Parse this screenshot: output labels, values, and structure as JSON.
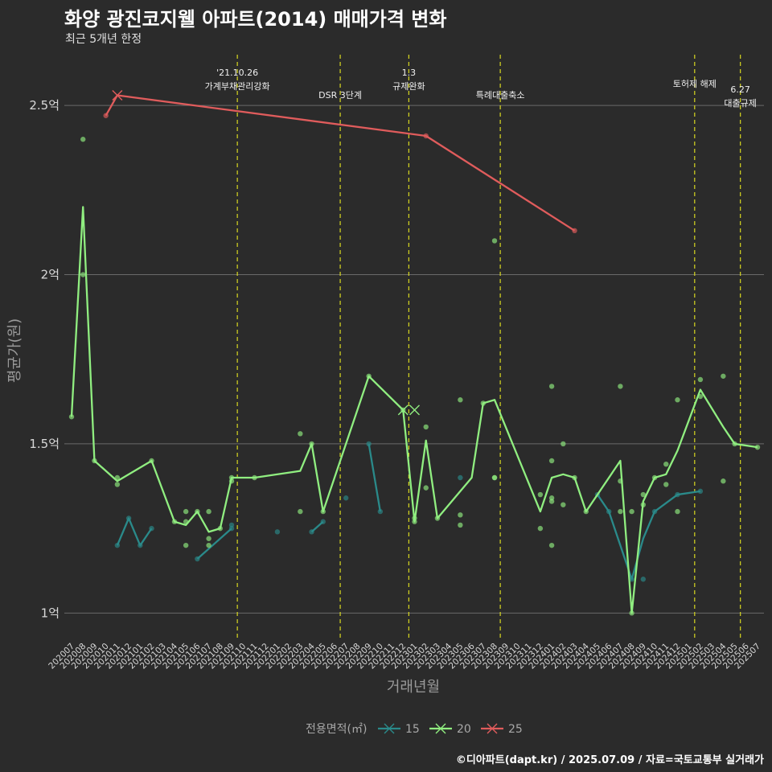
{
  "title": "화양 광진코지웰 아파트(2014) 매매가격 변화",
  "subtitle": "최근 5개년 한정",
  "caption": "©디아파트(dapt.kr) / 2025.07.09 / 자료=국토교통부 실거래가",
  "colors": {
    "15": "#2a8a8a",
    "20": "#90ee80",
    "25": "#e05c5c",
    "event": "#d8d820",
    "grid": "#6a6a6a",
    "background": "#2b2b2b"
  },
  "chart_data": {
    "type": "line",
    "xlabel": "거래년월",
    "ylabel": "평균가(원)",
    "ylim": [
      0.92,
      2.65
    ],
    "y_ticks": [
      {
        "value": 1.0,
        "label": "1억"
      },
      {
        "value": 1.5,
        "label": "1.5억"
      },
      {
        "value": 2.0,
        "label": "2억"
      },
      {
        "value": 2.5,
        "label": "2.5억"
      }
    ],
    "categories": [
      "202007",
      "202008",
      "202009",
      "202010",
      "202011",
      "202012",
      "202101",
      "202102",
      "202103",
      "202104",
      "202105",
      "202106",
      "202107",
      "202108",
      "202109",
      "202110",
      "202111",
      "202112",
      "202201",
      "202202",
      "202203",
      "202204",
      "202205",
      "202206",
      "202207",
      "202208",
      "202209",
      "202210",
      "202211",
      "202212",
      "202301",
      "202302",
      "202303",
      "202304",
      "202305",
      "202306",
      "202307",
      "202308",
      "202309",
      "202310",
      "202311",
      "202312",
      "202401",
      "202402",
      "202403",
      "202404",
      "202405",
      "202406",
      "202407",
      "202408",
      "202409",
      "202410",
      "202411",
      "202412",
      "202501",
      "202502",
      "202503",
      "202504",
      "202505",
      "202506",
      "202507"
    ],
    "legend": {
      "title": "전용면적(㎡)",
      "entries": [
        "15",
        "20",
        "25"
      ]
    },
    "events": [
      {
        "x": 14.5,
        "lines": [
          "'21.10.26",
          "가계부채관리강화"
        ],
        "row": 0
      },
      {
        "x": 23.5,
        "lines": [
          "DSR 3단계"
        ],
        "row": 2
      },
      {
        "x": 29.5,
        "lines": [
          "1.3",
          "규제완화"
        ],
        "row": 0
      },
      {
        "x": 37.5,
        "lines": [
          "특례대출축소"
        ],
        "row": 2
      },
      {
        "x": 54.5,
        "lines": [
          "토허제 해제"
        ],
        "row": 1
      },
      {
        "x": 58.5,
        "lines": [
          "6.27",
          "대출규제"
        ],
        "row": 1.5
      }
    ],
    "series": [
      {
        "name": "15",
        "line": [
          [
            4,
            1.2
          ],
          [
            5,
            1.28
          ],
          [
            6,
            1.2
          ],
          [
            7,
            1.25
          ],
          null,
          [
            11,
            1.16
          ],
          [
            14,
            1.25
          ],
          null,
          [
            21,
            1.24
          ],
          [
            22,
            1.27
          ],
          null,
          [
            26,
            1.5
          ],
          [
            27,
            1.3
          ],
          null,
          [
            46,
            1.35
          ],
          [
            47,
            1.3
          ],
          [
            49,
            1.1
          ],
          [
            50,
            1.22
          ],
          [
            51,
            1.3
          ],
          [
            53,
            1.35
          ],
          [
            55,
            1.36
          ]
        ],
        "points": [
          [
            4,
            1.2
          ],
          [
            5,
            1.28
          ],
          [
            6,
            1.2
          ],
          [
            7,
            1.25
          ],
          [
            11,
            1.16
          ],
          [
            14,
            1.25
          ],
          [
            14,
            1.26
          ],
          [
            18,
            1.24
          ],
          [
            21,
            1.24
          ],
          [
            22,
            1.27
          ],
          [
            24,
            1.34
          ],
          [
            26,
            1.5
          ],
          [
            27,
            1.3
          ],
          [
            34,
            1.4
          ],
          [
            46,
            1.35
          ],
          [
            47,
            1.3
          ],
          [
            49,
            1.1
          ],
          [
            50,
            1.1
          ],
          [
            51,
            1.3
          ],
          [
            53,
            1.35
          ],
          [
            55,
            1.36
          ]
        ],
        "markers": []
      },
      {
        "name": "20",
        "line": [
          [
            0,
            1.58
          ],
          [
            1,
            2.2
          ],
          [
            2,
            1.45
          ],
          [
            4,
            1.39
          ],
          [
            7,
            1.45
          ],
          [
            9,
            1.27
          ],
          [
            10,
            1.26
          ],
          [
            11,
            1.3
          ],
          [
            12,
            1.24
          ],
          [
            13,
            1.25
          ],
          [
            14,
            1.4
          ],
          [
            16,
            1.4
          ],
          [
            20,
            1.42
          ],
          [
            21,
            1.5
          ],
          [
            22,
            1.3
          ],
          [
            26,
            1.7
          ],
          [
            29,
            1.6
          ],
          [
            30,
            1.27
          ],
          [
            31,
            1.51
          ],
          [
            32,
            1.28
          ],
          [
            35,
            1.4
          ],
          [
            36,
            1.62
          ],
          [
            37,
            1.63
          ],
          [
            41,
            1.3
          ],
          [
            42,
            1.4
          ],
          [
            43,
            1.41
          ],
          [
            44,
            1.4
          ],
          [
            45,
            1.3
          ],
          [
            48,
            1.45
          ],
          [
            49,
            1.0
          ],
          [
            50,
            1.33
          ],
          [
            51,
            1.4
          ],
          [
            52,
            1.41
          ],
          [
            53,
            1.48
          ],
          [
            55,
            1.66
          ],
          [
            57,
            1.55
          ],
          [
            58,
            1.5
          ],
          [
            60,
            1.49
          ]
        ],
        "points": [
          [
            0,
            1.58
          ],
          [
            1,
            2.4
          ],
          [
            1,
            2.0
          ],
          [
            2,
            1.45
          ],
          [
            4,
            1.4
          ],
          [
            4,
            1.38
          ],
          [
            7,
            1.45
          ],
          [
            9,
            1.27
          ],
          [
            10,
            1.3
          ],
          [
            10,
            1.27
          ],
          [
            10,
            1.2
          ],
          [
            11,
            1.3
          ],
          [
            12,
            1.3
          ],
          [
            12,
            1.22
          ],
          [
            12,
            1.2
          ],
          [
            13,
            1.25
          ],
          [
            14,
            1.4
          ],
          [
            14,
            1.39
          ],
          [
            16,
            1.4
          ],
          [
            20,
            1.53
          ],
          [
            20,
            1.3
          ],
          [
            21,
            1.5
          ],
          [
            22,
            1.3
          ],
          [
            26,
            1.7
          ],
          [
            29,
            1.6
          ],
          [
            30,
            1.27
          ],
          [
            30,
            1.28
          ],
          [
            31,
            1.55
          ],
          [
            31,
            1.37
          ],
          [
            32,
            1.28
          ],
          [
            34,
            1.63
          ],
          [
            34,
            1.29
          ],
          [
            34,
            1.26
          ],
          [
            36,
            1.62
          ],
          [
            37,
            2.1
          ],
          [
            37,
            1.4
          ],
          [
            37,
            1.4
          ],
          [
            41,
            1.35
          ],
          [
            41,
            1.25
          ],
          [
            42,
            1.67
          ],
          [
            42,
            1.45
          ],
          [
            42,
            1.34
          ],
          [
            42,
            1.33
          ],
          [
            42,
            1.2
          ],
          [
            43,
            1.5
          ],
          [
            43,
            1.32
          ],
          [
            44,
            1.4
          ],
          [
            45,
            1.3
          ],
          [
            48,
            1.67
          ],
          [
            48,
            1.39
          ],
          [
            48,
            1.3
          ],
          [
            49,
            1.3
          ],
          [
            49,
            1.0
          ],
          [
            50,
            1.35
          ],
          [
            50,
            1.32
          ],
          [
            51,
            1.4
          ],
          [
            52,
            1.44
          ],
          [
            52,
            1.38
          ],
          [
            53,
            1.63
          ],
          [
            53,
            1.3
          ],
          [
            55,
            1.69
          ],
          [
            55,
            1.64
          ],
          [
            57,
            1.7
          ],
          [
            57,
            1.39
          ],
          [
            58,
            1.5
          ],
          [
            60,
            1.49
          ]
        ],
        "markers": [
          [
            29,
            1.6
          ],
          [
            30,
            1.6
          ]
        ]
      },
      {
        "name": "25",
        "line": [
          [
            3,
            2.47
          ],
          [
            4,
            2.53
          ],
          [
            31,
            2.41
          ],
          [
            44,
            2.13
          ]
        ],
        "points": [
          [
            3,
            2.47
          ],
          [
            31,
            2.41
          ],
          [
            44,
            2.13
          ]
        ],
        "markers": [
          [
            4,
            2.53
          ]
        ]
      }
    ]
  }
}
